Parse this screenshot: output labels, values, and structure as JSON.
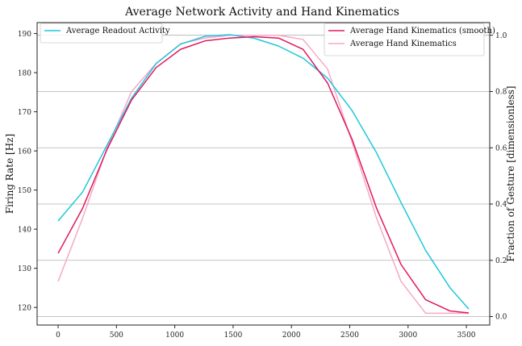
{
  "chart_data": {
    "type": "line",
    "title": "Average Network Activity and Hand Kinematics",
    "xlabel": "",
    "ylabel_left": "Firing Rate [Hz]",
    "ylabel_right": "Fraction of Gesture [dimensionless]",
    "xlim": [
      -180,
      3700
    ],
    "ylim_left": [
      115.5,
      192.8
    ],
    "ylim_right": [
      -0.03,
      1.045
    ],
    "x_ticks": [
      0,
      500,
      1000,
      1500,
      2000,
      2500,
      3000,
      3500
    ],
    "y_left_ticks": [
      120,
      130,
      140,
      150,
      160,
      170,
      180,
      190
    ],
    "y_right_ticks": [
      0.0,
      0.2,
      0.4,
      0.6,
      0.8,
      1.0
    ],
    "grid": "horizontal, right axis",
    "colors": {
      "readout": "#1ec8dc",
      "smooth": "#e0185e",
      "raw": "#f7a8c8",
      "grid": "#b0b0b0"
    },
    "series": [
      {
        "name": "Average Readout Activity",
        "axis": "left",
        "color": "#1ec8dc",
        "x": [
          0,
          210,
          420,
          630,
          840,
          1050,
          1260,
          1470,
          1680,
          1890,
          2100,
          2310,
          2520,
          2730,
          2940,
          3150,
          3360,
          3520
        ],
        "y": [
          142.1,
          149.5,
          161.5,
          173.5,
          182.3,
          187.3,
          189.3,
          189.7,
          188.8,
          186.8,
          183.7,
          178.6,
          170.3,
          159.5,
          146.8,
          134.6,
          125.0,
          119.6
        ]
      },
      {
        "name": "Average Hand Kinematics (smooth)",
        "axis": "right",
        "color": "#e0185e",
        "x": [
          0,
          210,
          420,
          630,
          840,
          1050,
          1260,
          1470,
          1680,
          1890,
          2100,
          2310,
          2520,
          2730,
          2940,
          3150,
          3360,
          3520
        ],
        "y": [
          0.225,
          0.385,
          0.595,
          0.77,
          0.885,
          0.95,
          0.98,
          0.99,
          0.995,
          0.99,
          0.95,
          0.83,
          0.63,
          0.385,
          0.185,
          0.06,
          0.02,
          0.013
        ]
      },
      {
        "name": "Average Hand Kinematics",
        "axis": "right",
        "color": "#f7a8c8",
        "x": [
          0,
          210,
          420,
          630,
          840,
          1050,
          1260,
          1470,
          1680,
          1890,
          2100,
          2310,
          2520,
          2730,
          2940,
          3150,
          3360,
          3520
        ],
        "y": [
          0.125,
          0.35,
          0.6,
          0.8,
          0.9,
          0.97,
          0.99,
          1.0,
          1.0,
          1.0,
          0.985,
          0.88,
          0.62,
          0.35,
          0.125,
          0.012,
          0.012,
          0.012
        ]
      }
    ]
  }
}
